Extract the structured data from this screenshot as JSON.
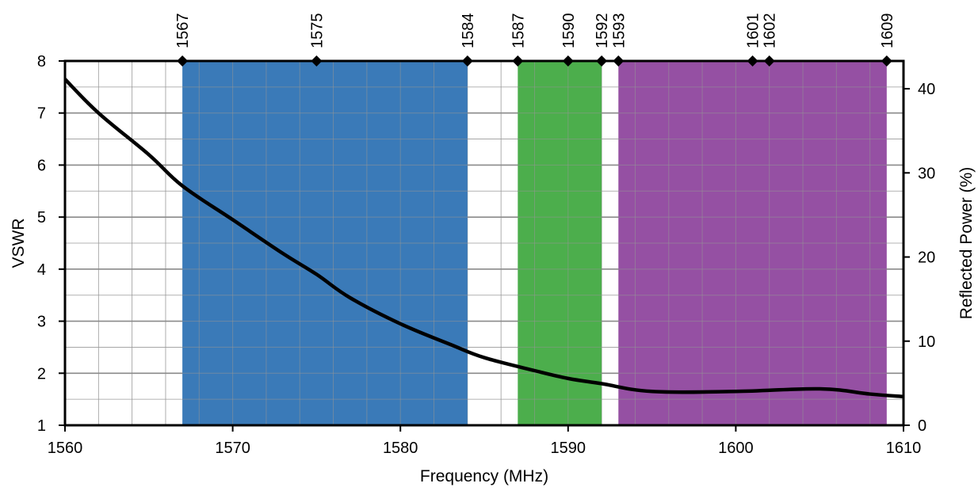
{
  "chart_data": {
    "type": "line",
    "xlabel": "Frequency (MHz)",
    "ylabel": "VSWR",
    "y2label": "Reflected Power (%)",
    "xlim": [
      1560,
      1610
    ],
    "ylim": [
      1,
      8
    ],
    "y2lim": [
      0,
      43.3
    ],
    "x_ticks": [
      1560,
      1570,
      1580,
      1590,
      1600,
      1610
    ],
    "y_ticks": [
      1,
      2,
      3,
      4,
      5,
      6,
      7,
      8
    ],
    "y2_ticks": [
      0,
      10,
      20,
      30,
      40
    ],
    "x_minor_step": 2,
    "y_minor_step": 0.5,
    "grid": true,
    "bands": [
      {
        "start": 1567,
        "end": 1584,
        "color": "#3a7ab8"
      },
      {
        "start": 1587,
        "end": 1592,
        "color": "#4cae4c"
      },
      {
        "start": 1593,
        "end": 1609,
        "color": "#9550a3"
      }
    ],
    "band_markers": [
      1567,
      1575,
      1584,
      1587,
      1590,
      1592,
      1593,
      1601,
      1602,
      1609
    ],
    "series": [
      {
        "color": "#000000",
        "x": [
          1560,
          1562,
          1565,
          1567,
          1570,
          1573,
          1575,
          1577,
          1580,
          1583,
          1585,
          1588,
          1590,
          1592,
          1595,
          1600,
          1605,
          1608,
          1610
        ],
        "y": [
          7.65,
          7.0,
          6.2,
          5.6,
          4.95,
          4.3,
          3.9,
          3.45,
          2.95,
          2.55,
          2.3,
          2.05,
          1.9,
          1.8,
          1.65,
          1.65,
          1.7,
          1.6,
          1.55
        ]
      }
    ]
  }
}
